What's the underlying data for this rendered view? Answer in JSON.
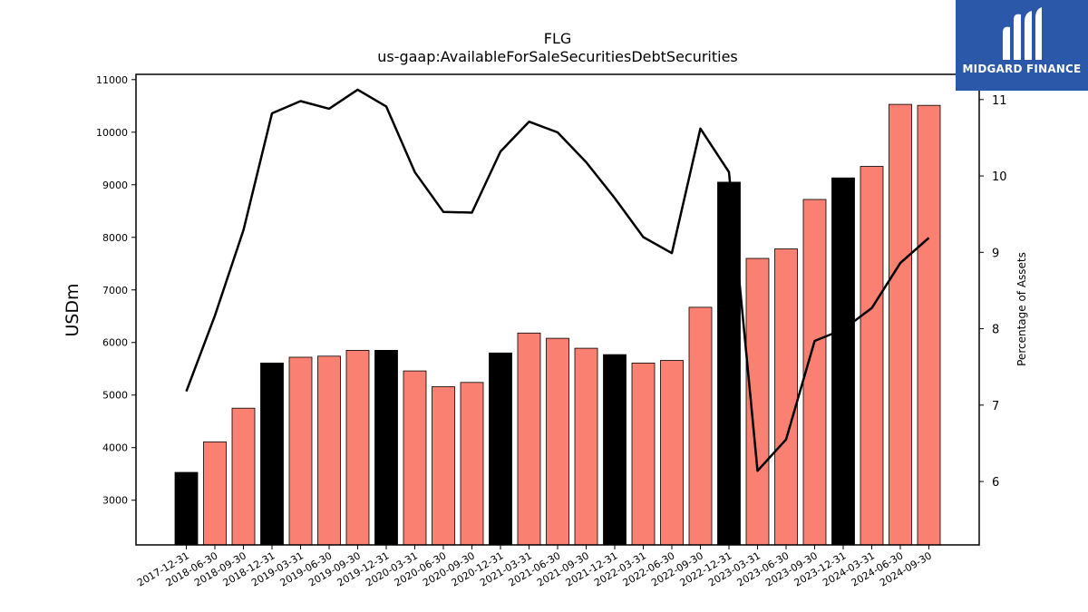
{
  "chart_data": {
    "type": "bar",
    "title": "FLG",
    "subtitle": "us-gaap:AvailableForSaleSecuritiesDebtSecurities",
    "ylabel": "USDm",
    "y2label": "Percentage of Assets",
    "ylim": [
      2150,
      11100
    ],
    "y2lim": [
      5.17,
      11.33
    ],
    "yticks": [
      3000,
      4000,
      5000,
      6000,
      7000,
      8000,
      9000,
      10000,
      11000
    ],
    "y2ticks": [
      6,
      7,
      8,
      9,
      10,
      11
    ],
    "categories": [
      "2017-12-31",
      "2018-06-30",
      "2018-09-30",
      "2018-12-31",
      "2019-03-31",
      "2019-06-30",
      "2019-09-30",
      "2019-12-31",
      "2020-03-31",
      "2020-06-30",
      "2020-09-30",
      "2020-12-31",
      "2021-03-31",
      "2021-06-30",
      "2021-09-30",
      "2021-12-31",
      "2022-03-31",
      "2022-06-30",
      "2022-09-30",
      "2022-12-31",
      "2023-03-31",
      "2023-06-30",
      "2023-09-30",
      "2023-12-31",
      "2024-03-31",
      "2024-06-30",
      "2024-09-30"
    ],
    "bar_values": [
      3530,
      4110,
      4750,
      5610,
      5720,
      5740,
      5850,
      5850,
      5460,
      5160,
      5240,
      5800,
      6180,
      6080,
      5890,
      5770,
      5610,
      5660,
      6670,
      9050,
      7600,
      7780,
      8720,
      9130,
      9350,
      10530,
      10510
    ],
    "bar_colors": [
      "#000000",
      "#fa8072",
      "#fa8072",
      "#000000",
      "#fa8072",
      "#fa8072",
      "#fa8072",
      "#000000",
      "#fa8072",
      "#fa8072",
      "#fa8072",
      "#000000",
      "#fa8072",
      "#fa8072",
      "#fa8072",
      "#000000",
      "#fa8072",
      "#fa8072",
      "#fa8072",
      "#000000",
      "#fa8072",
      "#fa8072",
      "#fa8072",
      "#000000",
      "#fa8072",
      "#fa8072",
      "#fa8072"
    ],
    "line_values": [
      7.18,
      8.17,
      9.29,
      10.82,
      10.98,
      10.88,
      11.13,
      10.91,
      10.05,
      9.53,
      9.52,
      10.32,
      10.71,
      10.57,
      10.18,
      9.71,
      9.2,
      8.99,
      10.62,
      10.05,
      6.14,
      6.55,
      7.84,
      7.99,
      8.27,
      8.86,
      9.19
    ],
    "line_color": "#000000",
    "grid": false
  },
  "logo": {
    "text": "MIDGARD FINANCE"
  }
}
